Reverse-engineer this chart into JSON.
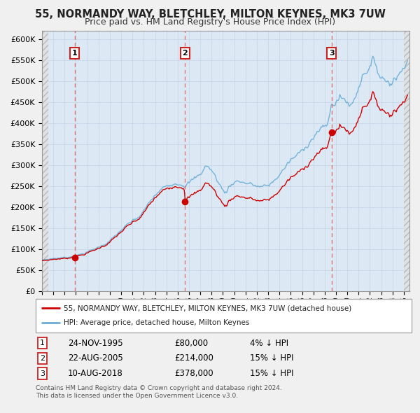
{
  "title": "55, NORMANDY WAY, BLETCHLEY, MILTON KEYNES, MK3 7UW",
  "subtitle": "Price paid vs. HM Land Registry's House Price Index (HPI)",
  "legend_line1": "55, NORMANDY WAY, BLETCHLEY, MILTON KEYNES, MK3 7UW (detached house)",
  "legend_line2": "HPI: Average price, detached house, Milton Keynes",
  "footer_line1": "Contains HM Land Registry data © Crown copyright and database right 2024.",
  "footer_line2": "This data is licensed under the Open Government Licence v3.0.",
  "table_entries": [
    {
      "num": "1",
      "date": "24-NOV-1995",
      "price": "£80,000",
      "hpi": "4% ↓ HPI"
    },
    {
      "num": "2",
      "date": "22-AUG-2005",
      "price": "£214,000",
      "hpi": "15% ↓ HPI"
    },
    {
      "num": "3",
      "date": "10-AUG-2018",
      "price": "£378,000",
      "hpi": "15% ↓ HPI"
    }
  ],
  "sales": [
    {
      "date_num": 1995.9,
      "price": 80000,
      "label": "1"
    },
    {
      "date_num": 2005.65,
      "price": 214000,
      "label": "2"
    },
    {
      "date_num": 2018.62,
      "price": 378000,
      "label": "3"
    }
  ],
  "vline_dates": [
    1995.9,
    2005.65,
    2018.62
  ],
  "hpi_color": "#6baed6",
  "sales_color": "#cc0000",
  "vline_color": "#e06060",
  "grid_color": "#c8d8e8",
  "plot_bg_color": "#dce9f5",
  "fig_bg_color": "#f0f0f0",
  "legend_border_color": "#aaaaaa",
  "table_box_color": "#cc2222",
  "ylim": [
    0,
    620000
  ],
  "xlim_start": 1993.0,
  "xlim_end": 2025.5,
  "title_fontsize": 10.5,
  "subtitle_fontsize": 9
}
